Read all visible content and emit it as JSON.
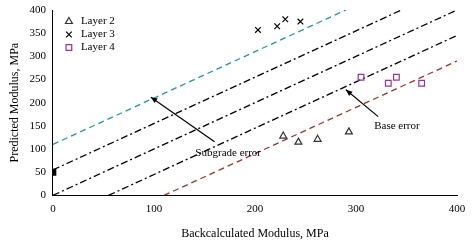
{
  "chart_data": {
    "type": "scatter",
    "x_label": "Backcalculated Modulus, MPa",
    "y_label": "Predicted Modulus, MPa",
    "xlim": [
      0,
      400
    ],
    "xticks": [
      0,
      100,
      200,
      300,
      400
    ],
    "ylim": [
      0,
      400
    ],
    "yticks": [
      0,
      50,
      100,
      150,
      200,
      250,
      300,
      350,
      400
    ],
    "grid": false,
    "legend": "upper left",
    "series": [
      {
        "name": "Layer 2",
        "color": "#333333",
        "marker": "triangle",
        "x": [
          228,
          243,
          262,
          293
        ],
        "values": [
          128,
          115,
          121,
          137
        ]
      },
      {
        "name": "Layer 3",
        "color": "#000000",
        "marker": "cross",
        "x": [
          203,
          222,
          230,
          245
        ],
        "values": [
          357,
          365,
          380,
          375
        ]
      },
      {
        "name": "Layer 4",
        "color": "#993399",
        "marker": "square",
        "x": [
          305,
          332,
          340,
          365
        ],
        "values": [
          255,
          242,
          255,
          242
        ]
      },
      {
        "color": "#000000",
        "marker": "filled_square",
        "x": [
          0
        ],
        "values": [
          50
        ]
      },
      {
        "type": "line",
        "color": "#1f9a9a",
        "line_style": "dashed",
        "x": [
          0,
          290
        ],
        "values": [
          110,
          400
        ]
      },
      {
        "type": "line",
        "color": "#000000",
        "line_style": "dash-dot",
        "x": [
          0,
          345
        ],
        "values": [
          55,
          400
        ]
      },
      {
        "type": "line",
        "color": "#000000",
        "line_style": "dash-dot",
        "x": [
          0,
          400
        ],
        "values": [
          0,
          400
        ]
      },
      {
        "type": "line",
        "color": "#000000",
        "line_style": "dash-dot",
        "x": [
          55,
          400
        ],
        "values": [
          0,
          345
        ]
      },
      {
        "type": "line",
        "color": "#a0322a",
        "line_style": "dashed",
        "x": [
          110,
          400
        ],
        "values": [
          0,
          290
        ]
      }
    ],
    "annotations": [
      {
        "text": "Base error"
      },
      {
        "text": "Subgrade error"
      }
    ]
  }
}
